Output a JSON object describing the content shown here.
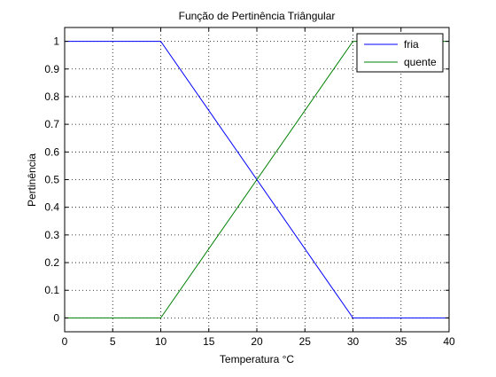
{
  "chart_data": {
    "type": "line",
    "title": "Função de Pertinência Triângular",
    "xlabel": "Temperatura °C",
    "ylabel": "Pertinência",
    "xlim": [
      0,
      40
    ],
    "ylim": [
      -0.05,
      1.05
    ],
    "xticks": [
      0,
      5,
      10,
      15,
      20,
      25,
      30,
      35,
      40
    ],
    "yticks": [
      0,
      0.1,
      0.2,
      0.3,
      0.4,
      0.5,
      0.6,
      0.7,
      0.8,
      0.9,
      1
    ],
    "grid": true,
    "legend_position": "top-right",
    "series": [
      {
        "name": "fria",
        "color": "#0000ff",
        "x": [
          0,
          10,
          30,
          40
        ],
        "y": [
          1,
          1,
          0,
          0
        ]
      },
      {
        "name": "quente",
        "color": "#008000",
        "x": [
          0,
          10,
          30,
          40
        ],
        "y": [
          0,
          0,
          1,
          1
        ]
      }
    ]
  }
}
